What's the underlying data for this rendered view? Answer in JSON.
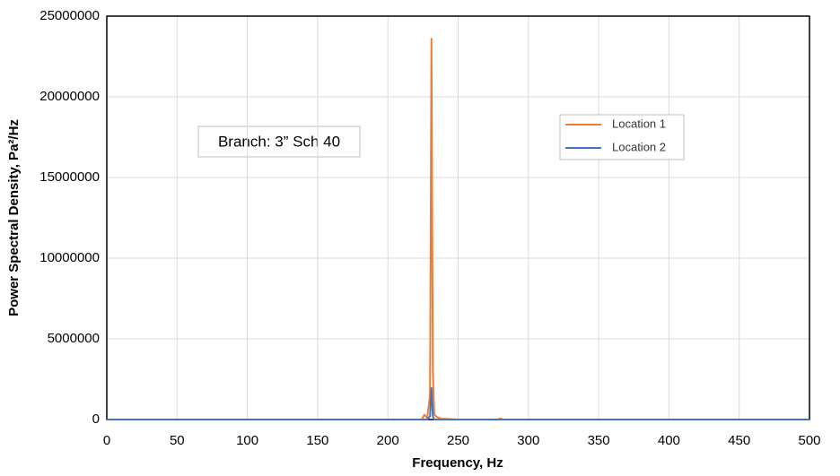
{
  "chart_data": {
    "type": "line",
    "x_label": "Frequency, Hz",
    "y_label": "Power Spectral Density, Pa²/Hz",
    "annotation": "Branch: 3” Sch 40",
    "x": [
      0,
      100,
      200,
      224,
      226,
      228,
      230,
      231,
      232,
      233,
      235,
      238,
      250,
      278,
      280,
      282,
      300,
      400,
      500
    ],
    "series": [
      {
        "name": "Location 1",
        "color": "#ed7d31",
        "values": [
          0,
          0,
          0,
          0,
          300000,
          100000,
          1500000,
          23600000,
          3000000,
          300000,
          150000,
          50000,
          0,
          0,
          60000,
          0,
          0,
          0,
          0
        ]
      },
      {
        "name": "Location 2",
        "color": "#4472c4",
        "values": [
          0,
          0,
          0,
          0,
          0,
          0,
          200000,
          1950000,
          200000,
          0,
          0,
          0,
          0,
          0,
          0,
          0,
          0,
          0,
          0
        ]
      }
    ],
    "xlim": [
      0,
      500
    ],
    "xticks": [
      0,
      50,
      100,
      150,
      200,
      250,
      300,
      350,
      400,
      450,
      500
    ],
    "ylim": [
      0,
      25000000
    ],
    "yticks": [
      0,
      5000000,
      10000000,
      15000000,
      20000000,
      25000000
    ],
    "grid": true,
    "legend": "upper right"
  }
}
